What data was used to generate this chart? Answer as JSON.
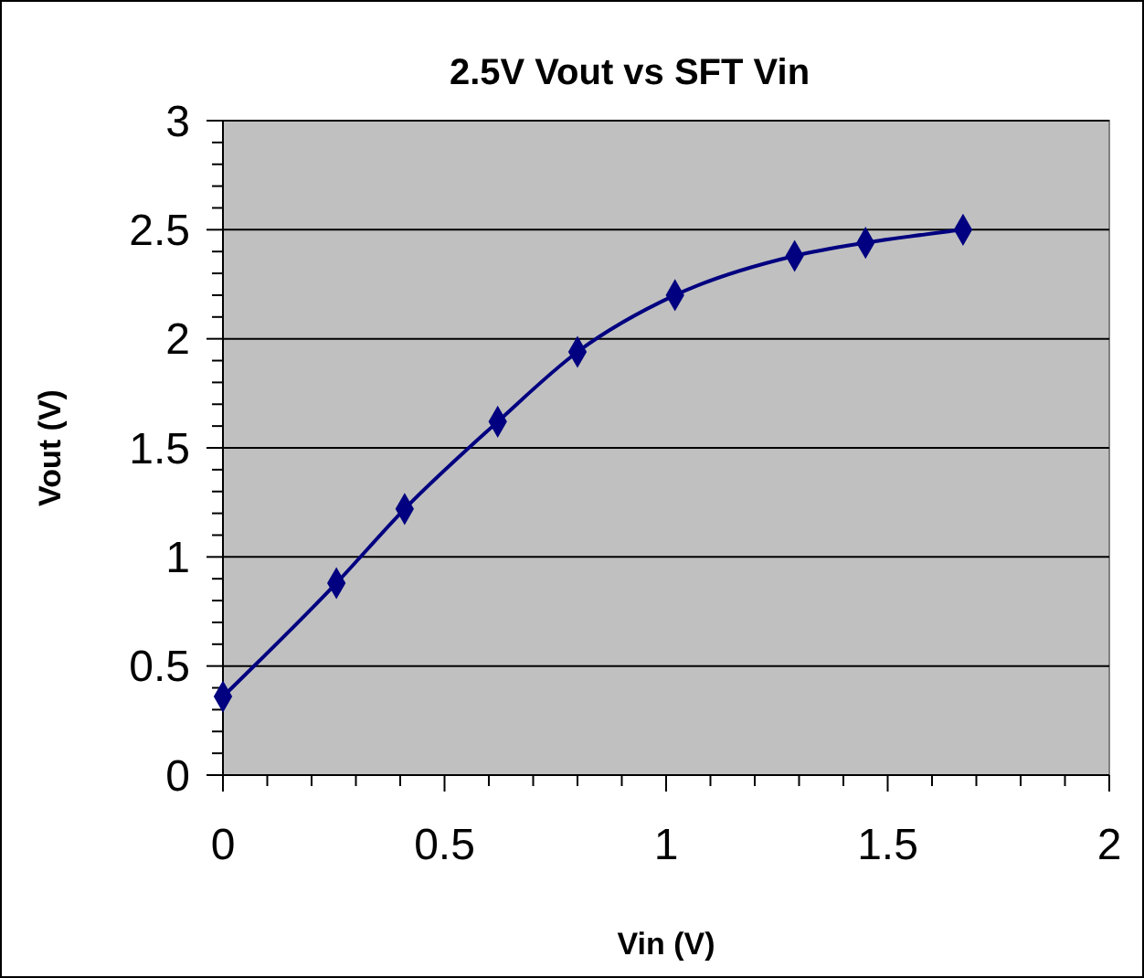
{
  "chart_data": {
    "type": "line",
    "title": "2.5V Vout vs SFT Vin",
    "xlabel": "Vin (V)",
    "ylabel": "Vout (V)",
    "x": [
      0,
      0.256,
      0.41,
      0.62,
      0.8,
      1.02,
      1.29,
      1.45,
      1.67
    ],
    "series": [
      {
        "color": "#000080",
        "values": [
          0.36,
          0.88,
          1.22,
          1.62,
          1.94,
          2.2,
          2.38,
          2.44,
          2.5
        ]
      }
    ],
    "xlim": [
      0,
      2
    ],
    "ylim": [
      0,
      3
    ],
    "xticks": [
      0,
      {
        "value": 0.1,
        "label": null
      },
      {
        "value": 0.2,
        "label": null
      },
      {
        "value": 0.3,
        "label": null
      },
      {
        "value": 0.4,
        "label": null
      },
      0.5,
      {
        "value": 0.6,
        "label": null
      },
      {
        "value": 0.7,
        "label": null
      },
      {
        "value": 0.8,
        "label": null
      },
      {
        "value": 0.9,
        "label": null
      },
      1,
      {
        "value": 1.1,
        "label": null
      },
      {
        "value": 1.2,
        "label": null
      },
      {
        "value": 1.3,
        "label": null
      },
      {
        "value": 1.4,
        "label": null
      },
      1.5,
      {
        "value": 1.6,
        "label": null
      },
      {
        "value": 1.7,
        "label": null
      },
      {
        "value": 1.8,
        "label": null
      },
      {
        "value": 1.9,
        "label": null
      },
      2
    ],
    "yticks": [
      0,
      {
        "value": 0.1,
        "label": null
      },
      {
        "value": 0.2,
        "label": null
      },
      {
        "value": 0.3,
        "label": null
      },
      {
        "value": 0.4,
        "label": null
      },
      0.5,
      {
        "value": 0.6,
        "label": null
      },
      {
        "value": 0.7,
        "label": null
      },
      {
        "value": 0.8,
        "label": null
      },
      {
        "value": 0.9,
        "label": null
      },
      1,
      {
        "value": 1.1,
        "label": null
      },
      {
        "value": 1.2,
        "label": null
      },
      {
        "value": 1.3,
        "label": null
      },
      {
        "value": 1.4,
        "label": null
      },
      1.5,
      {
        "value": 1.6,
        "label": null
      },
      {
        "value": 1.7,
        "label": null
      },
      {
        "value": 1.8,
        "label": null
      },
      {
        "value": 1.9,
        "label": null
      },
      2,
      {
        "value": 2.1,
        "label": null
      },
      {
        "value": 2.2,
        "label": null
      },
      {
        "value": 2.3,
        "label": null
      },
      {
        "value": 2.4,
        "label": null
      },
      2.5,
      {
        "value": 2.6,
        "label": null
      },
      {
        "value": 2.7,
        "label": null
      },
      {
        "value": 2.8,
        "label": null
      },
      {
        "value": 2.9,
        "label": null
      },
      3
    ],
    "grid": "y",
    "marker": "diamond",
    "line_style": "solid"
  }
}
